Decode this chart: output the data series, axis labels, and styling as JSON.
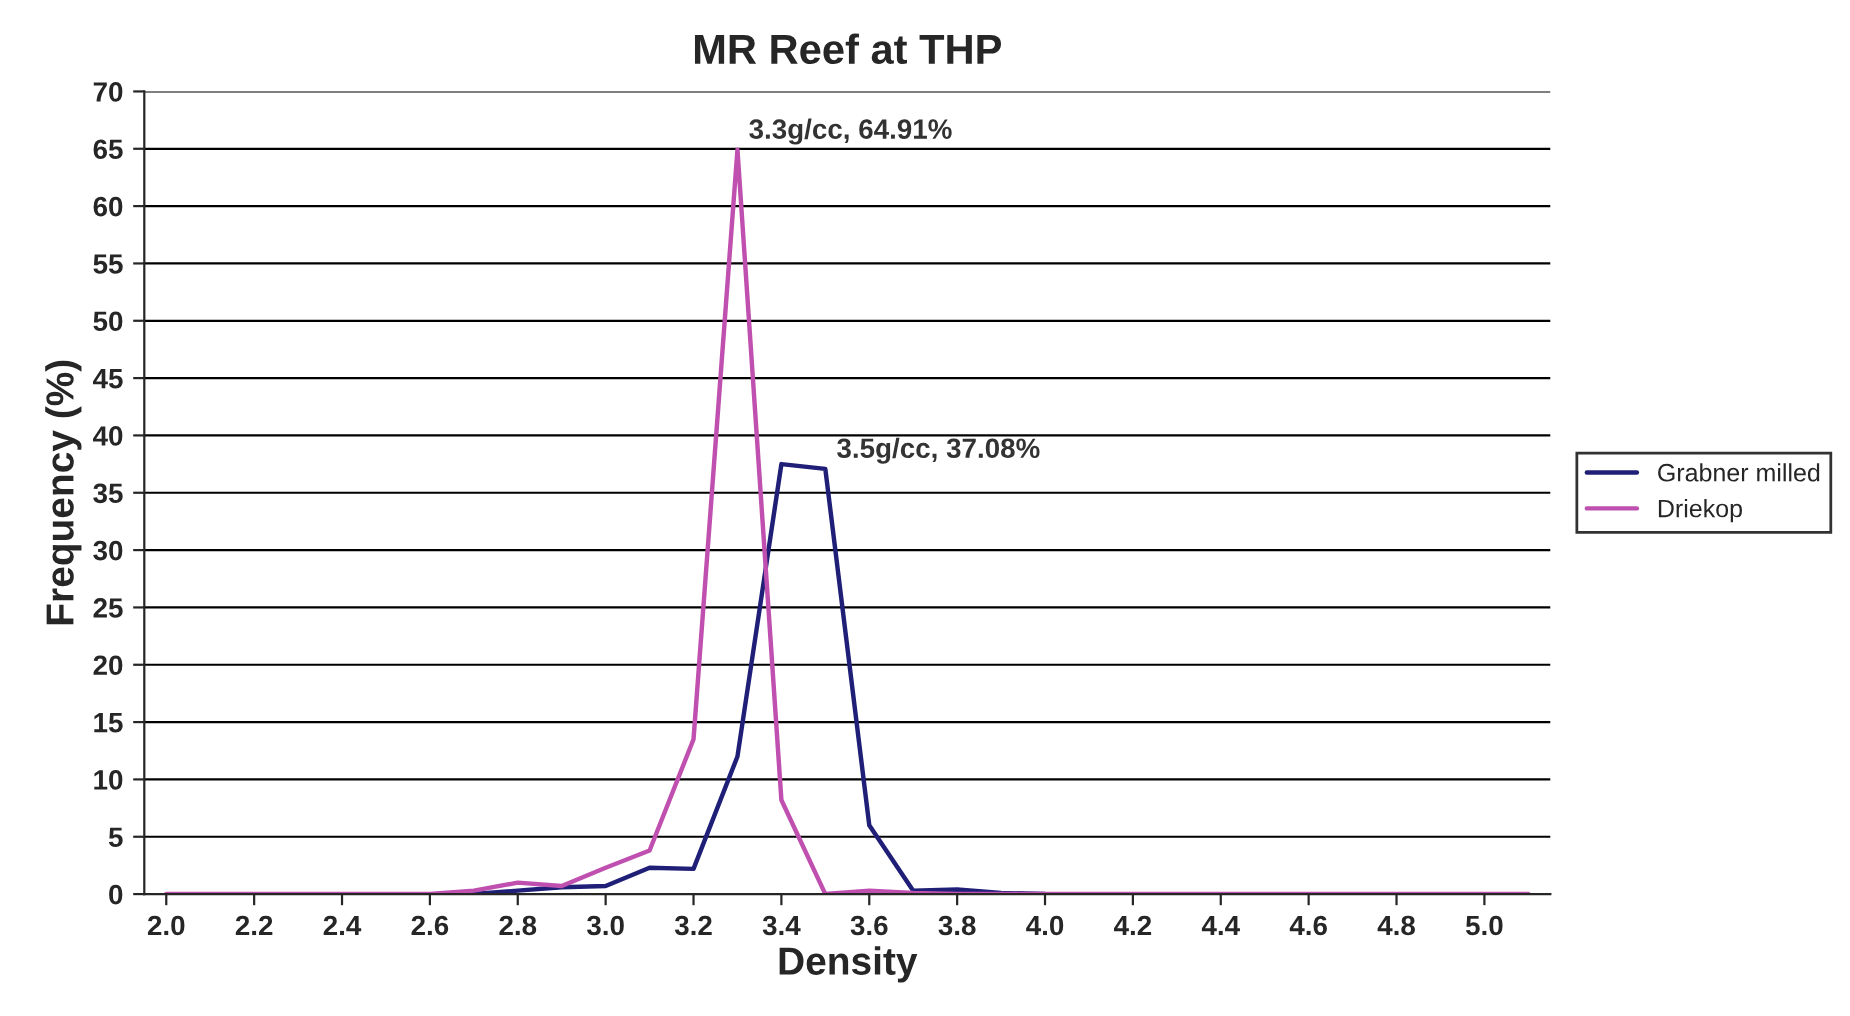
{
  "chart_data": {
    "type": "line",
    "title": "MR Reef at THP",
    "xlabel": "Density",
    "ylabel": "Frequency (%)",
    "x": [
      2.0,
      2.1,
      2.2,
      2.3,
      2.4,
      2.5,
      2.6,
      2.7,
      2.8,
      2.9,
      3.0,
      3.1,
      3.2,
      3.3,
      3.4,
      3.5,
      3.6,
      3.7,
      3.8,
      3.9,
      4.0,
      4.1,
      4.2,
      4.3,
      4.4,
      4.5,
      4.6,
      4.7,
      4.8,
      4.9,
      5.0,
      5.1
    ],
    "series": [
      {
        "name": "Grabner milled",
        "color": "#1f1f78",
        "values": [
          null,
          null,
          null,
          null,
          null,
          null,
          null,
          0,
          0.3,
          0.6,
          0.7,
          2.3,
          2.2,
          12,
          37.5,
          37.08,
          6,
          0.3,
          0.4,
          0.1,
          0,
          null,
          null,
          null,
          null,
          null,
          null,
          null,
          null,
          null,
          null,
          null
        ]
      },
      {
        "name": "Driekop",
        "color": "#c050b0",
        "values": [
          0,
          0,
          0,
          0,
          0,
          0,
          0,
          0.3,
          1.0,
          0.7,
          2.3,
          3.8,
          13.5,
          64.91,
          8.2,
          0,
          0.3,
          0.1,
          0,
          0,
          0,
          0,
          0,
          0,
          0,
          0,
          0,
          0,
          0,
          0,
          0,
          0
        ]
      }
    ],
    "xlim": [
      1.95,
      5.15
    ],
    "xticks": [
      {
        "value": 2.0,
        "label": "2.0"
      },
      {
        "value": 2.2,
        "label": "2.2"
      },
      {
        "value": 2.4,
        "label": "2.4"
      },
      {
        "value": 2.6,
        "label": "2.6"
      },
      {
        "value": 2.8,
        "label": "2.8"
      },
      {
        "value": 3.0,
        "label": "3.0"
      },
      {
        "value": 3.2,
        "label": "3.2"
      },
      {
        "value": 3.4,
        "label": "3.4"
      },
      {
        "value": 3.6,
        "label": "3.6"
      },
      {
        "value": 3.8,
        "label": "3.8"
      },
      {
        "value": 4.0,
        "label": "4.0"
      },
      {
        "value": 4.2,
        "label": "4.2"
      },
      {
        "value": 4.4,
        "label": "4.4"
      },
      {
        "value": 4.6,
        "label": "4.6"
      },
      {
        "value": 4.8,
        "label": "4.8"
      },
      {
        "value": 5.0,
        "label": "5.0"
      }
    ],
    "ylim": [
      0,
      70
    ],
    "yticks": [
      0,
      5,
      10,
      15,
      20,
      25,
      30,
      35,
      40,
      45,
      50,
      55,
      60,
      65,
      70
    ],
    "grid": "y",
    "legend": "right",
    "marker": "none",
    "line_style": "solid",
    "annotations": [
      {
        "text": "3.3g/cc, 64.91%",
        "x": 3.3,
        "y": 64.91
      },
      {
        "text": "3.5g/cc, 37.08%",
        "x": 3.5,
        "y": 37.08
      }
    ]
  }
}
